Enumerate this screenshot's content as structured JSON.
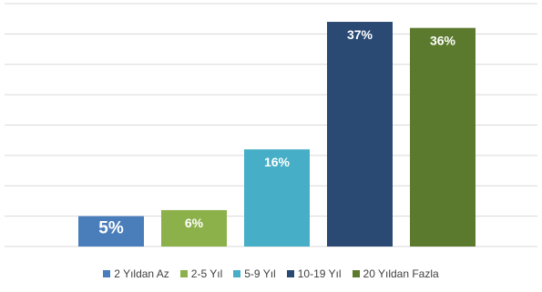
{
  "chart_data": {
    "type": "bar",
    "title": "",
    "xlabel": "",
    "ylabel": "",
    "ylim": [
      0,
      40
    ],
    "grid": true,
    "legend_position": "bottom",
    "categories": [
      "2 Yıldan Az",
      "2-5 Yıl",
      "5-9 Yıl",
      "10-19 Yıl",
      "20 Yıldan Fazla"
    ],
    "values": [
      5,
      6,
      16,
      37,
      36
    ],
    "data_labels": [
      "5%",
      "6%",
      "16%",
      "37%",
      "36%"
    ],
    "colors": [
      "#4a7ebb",
      "#8cb14a",
      "#46aec6",
      "#2a4a73",
      "#5c7a2e"
    ]
  }
}
